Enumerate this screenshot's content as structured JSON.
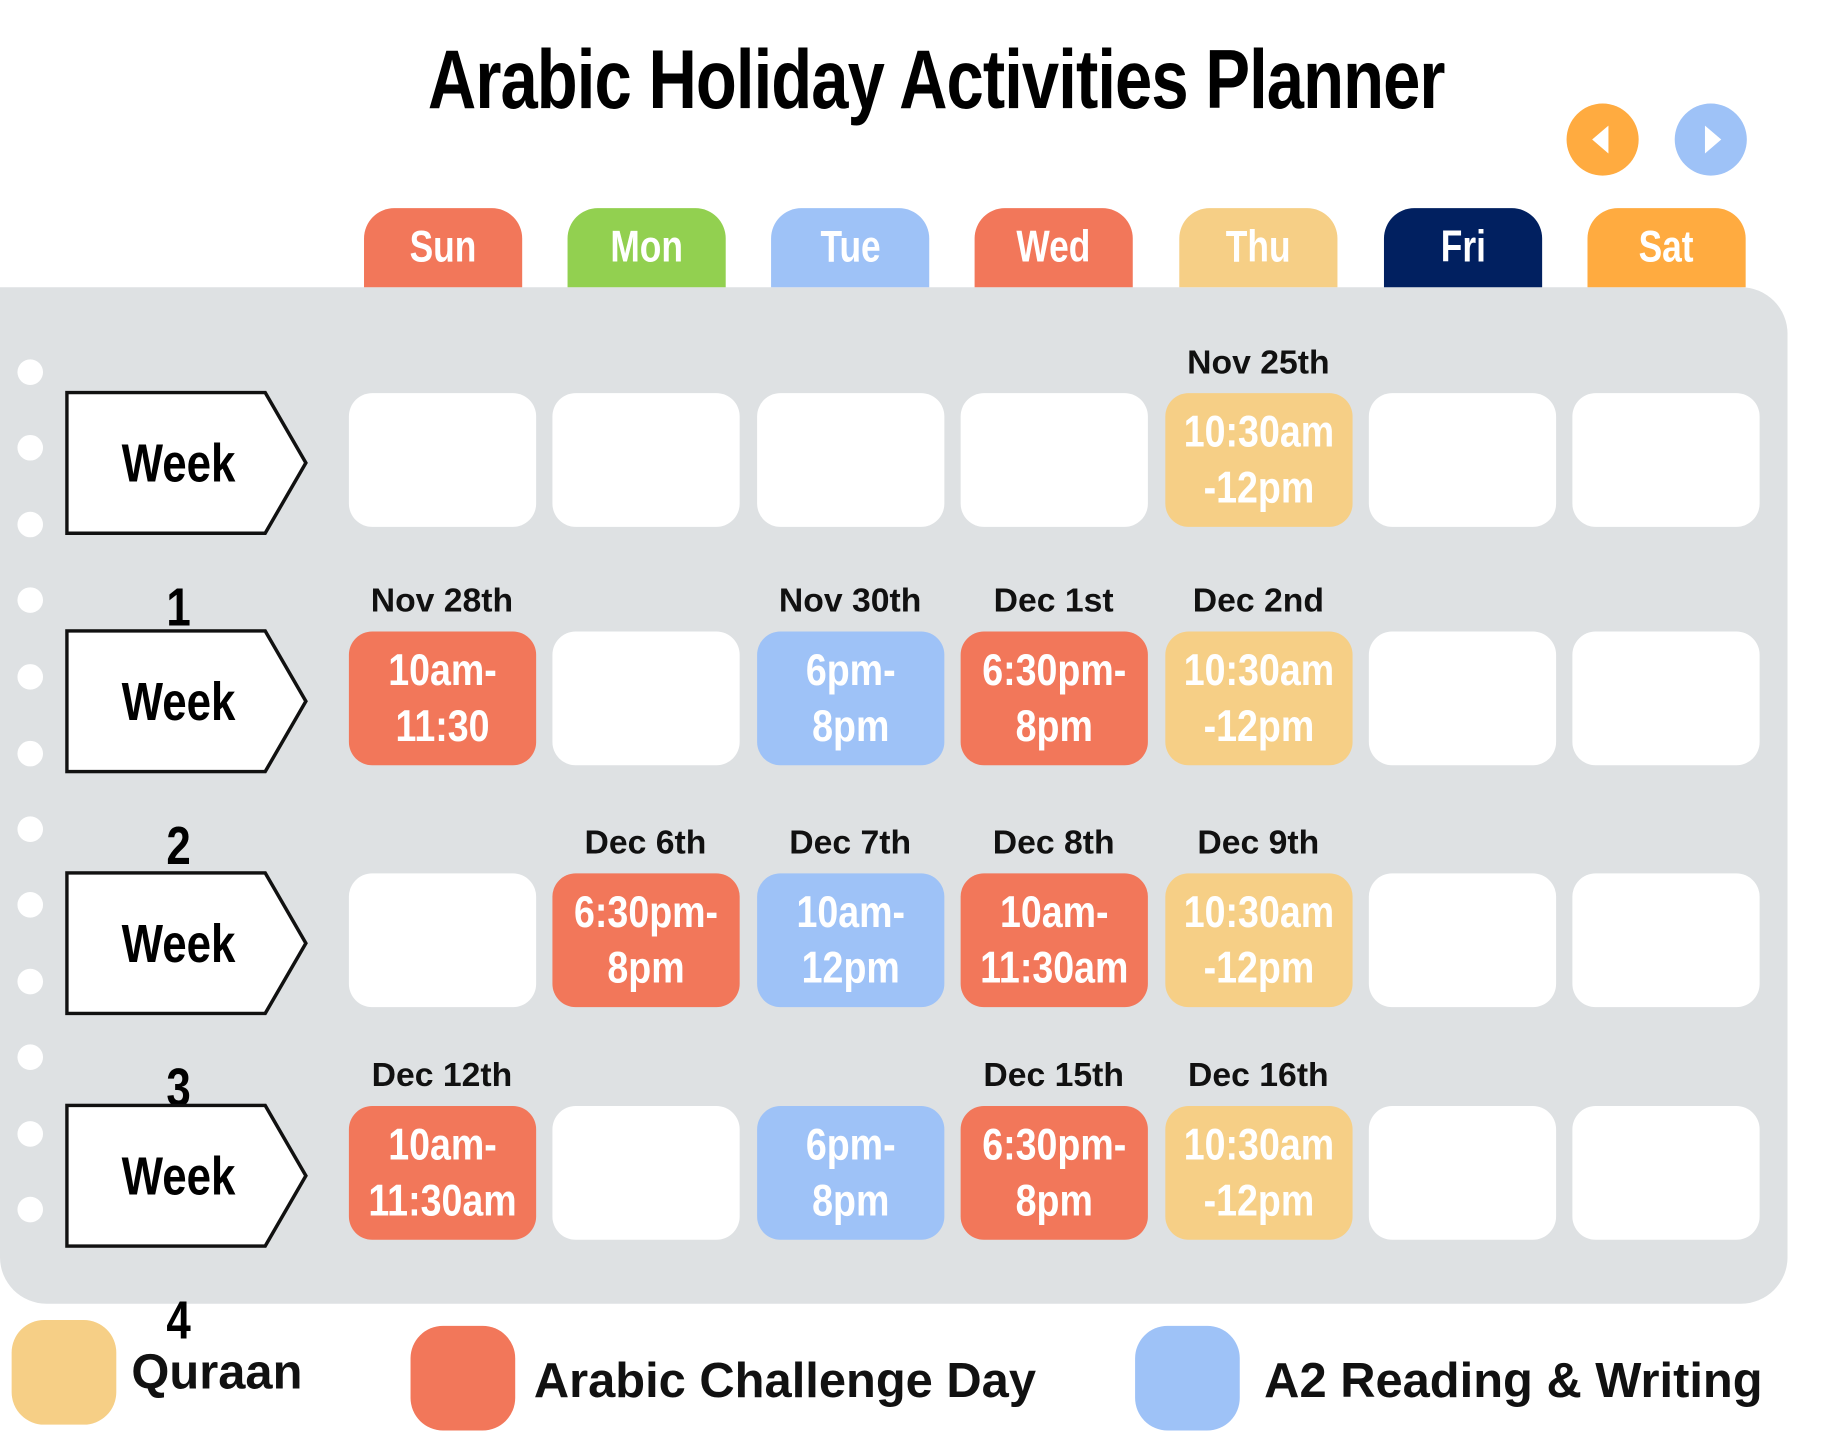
{
  "title": "Arabic Holiday Activities Planner",
  "nav": {
    "prev_icon": "triangle-left-icon",
    "next_icon": "triangle-right-icon",
    "prev_color": "#ffab40",
    "next_color": "#9ec2f7"
  },
  "days": [
    {
      "label": "Sun",
      "color": "#f2775a"
    },
    {
      "label": "Mon",
      "color": "#92d050"
    },
    {
      "label": "Tue",
      "color": "#9ec2f7"
    },
    {
      "label": "Wed",
      "color": "#f2775a"
    },
    {
      "label": "Thu",
      "color": "#f6cf86"
    },
    {
      "label": "Fri",
      "color": "#012060"
    },
    {
      "label": "Sat",
      "color": "#ffab40"
    }
  ],
  "colors": {
    "quraan": "#f6cf86",
    "challenge": "#f2775a",
    "reading": "#9ec2f7",
    "panel": "#dee1e3"
  },
  "weeks": [
    {
      "label": "Week 1",
      "cells": [
        null,
        null,
        null,
        null,
        {
          "date": "Nov 25th",
          "lines": [
            "10:30am",
            "-12pm"
          ],
          "type": "quraan"
        },
        null,
        null
      ]
    },
    {
      "label": "Week 2",
      "cells": [
        {
          "date": "Nov 28th",
          "lines": [
            "10am-",
            "11:30"
          ],
          "type": "challenge"
        },
        null,
        {
          "date": "Nov 30th",
          "lines": [
            "6pm-",
            "8pm"
          ],
          "type": "reading"
        },
        {
          "date": "Dec 1st",
          "lines": [
            "6:30pm-",
            "8pm"
          ],
          "type": "challenge"
        },
        {
          "date": "Dec 2nd",
          "lines": [
            "10:30am",
            "-12pm"
          ],
          "type": "quraan"
        },
        null,
        null
      ]
    },
    {
      "label": "Week 3",
      "cells": [
        null,
        {
          "date": "Dec 6th",
          "lines": [
            "6:30pm-",
            "8pm"
          ],
          "type": "challenge"
        },
        {
          "date": "Dec 7th",
          "lines": [
            "10am-",
            "12pm"
          ],
          "type": "reading"
        },
        {
          "date": "Dec 8th",
          "lines": [
            "10am-",
            "11:30am"
          ],
          "type": "challenge"
        },
        {
          "date": "Dec 9th",
          "lines": [
            "10:30am",
            "-12pm"
          ],
          "type": "quraan"
        },
        null,
        null
      ]
    },
    {
      "label": "Week 4",
      "cells": [
        {
          "date": "Dec 12th",
          "lines": [
            "10am-",
            "11:30am"
          ],
          "type": "challenge"
        },
        null,
        {
          "date": "",
          "lines": [
            "6pm-",
            "8pm"
          ],
          "type": "reading"
        },
        {
          "date": "Dec 15th",
          "lines": [
            "6:30pm-",
            "8pm"
          ],
          "type": "challenge"
        },
        {
          "date": "Dec 16th",
          "lines": [
            "10:30am",
            "-12pm"
          ],
          "type": "quraan"
        },
        null,
        null
      ]
    }
  ],
  "legend": [
    {
      "label": "Quraan",
      "type": "quraan"
    },
    {
      "label": "Arabic Challenge Day",
      "type": "challenge"
    },
    {
      "label": "A2 Reading & Writing",
      "type": "reading"
    }
  ]
}
